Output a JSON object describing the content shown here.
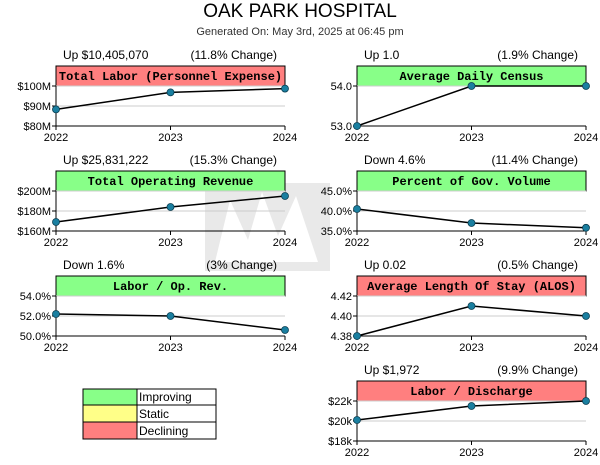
{
  "header": {
    "title": "OAK PARK HOSPITAL",
    "subtitle": "Generated On: May 3rd, 2025 at 06:45 pm"
  },
  "colors": {
    "improving": "#88FF88",
    "static": "#FFFF88",
    "declining": "#FF7F7F",
    "line": "#000000",
    "marker": "#1A7FA0",
    "grid": "#CCCCCC"
  },
  "legend": {
    "items": [
      {
        "label": "Improving",
        "color": "#88FF88"
      },
      {
        "label": "Static",
        "color": "#FFFF88"
      },
      {
        "label": "Declining",
        "color": "#FF7F7F"
      }
    ]
  },
  "chart_data": [
    {
      "type": "line",
      "title": "Total Labor (Personnel Expense)",
      "status": "declining",
      "delta": "Up $10,405,070",
      "change": "(11.8% Change)",
      "categories": [
        "2022",
        "2023",
        "2024"
      ],
      "values": [
        88.3,
        96.8,
        98.7
      ],
      "ylim": [
        80,
        100
      ],
      "yticks": [
        80,
        90,
        100
      ],
      "ytick_labels": [
        "$80M",
        "$90M",
        "$100M"
      ]
    },
    {
      "type": "line",
      "title": "Average Daily Census",
      "status": "improving",
      "delta": "Up 1.0",
      "change": "(1.9% Change)",
      "categories": [
        "2022",
        "2023",
        "2024"
      ],
      "values": [
        53.0,
        54.0,
        54.0
      ],
      "ylim": [
        53,
        54
      ],
      "yticks": [
        53,
        54
      ],
      "ytick_labels": [
        "53.0",
        "54.0"
      ]
    },
    {
      "type": "line",
      "title": "Total Operating Revenue",
      "status": "improving",
      "delta": "Up $25,831,222",
      "change": "(15.3% Change)",
      "categories": [
        "2022",
        "2023",
        "2024"
      ],
      "values": [
        169.0,
        184.0,
        195.0
      ],
      "ylim": [
        160,
        200
      ],
      "yticks": [
        160,
        180,
        200
      ],
      "ytick_labels": [
        "$160M",
        "$180M",
        "$200M"
      ]
    },
    {
      "type": "line",
      "title": "Percent of Gov. Volume",
      "status": "improving",
      "delta": "Down 4.6%",
      "change": "(11.4% Change)",
      "categories": [
        "2022",
        "2023",
        "2024"
      ],
      "values": [
        40.5,
        37.0,
        35.8
      ],
      "ylim": [
        35,
        45
      ],
      "yticks": [
        35,
        40,
        45
      ],
      "ytick_labels": [
        "35.0%",
        "40.0%",
        "45.0%"
      ]
    },
    {
      "type": "line",
      "title": "Labor / Op. Rev.",
      "status": "improving",
      "delta": "Down 1.6%",
      "change": "(3% Change)",
      "categories": [
        "2022",
        "2023",
        "2024"
      ],
      "values": [
        52.2,
        52.0,
        50.6
      ],
      "ylim": [
        50,
        54
      ],
      "yticks": [
        50,
        52,
        54
      ],
      "ytick_labels": [
        "50.0%",
        "52.0%",
        "54.0%"
      ]
    },
    {
      "type": "line",
      "title": "Average Length Of Stay (ALOS)",
      "status": "declining",
      "delta": "Up 0.02",
      "change": "(0.5% Change)",
      "categories": [
        "2022",
        "2023",
        "2024"
      ],
      "values": [
        4.38,
        4.41,
        4.4
      ],
      "ylim": [
        4.38,
        4.42
      ],
      "yticks": [
        4.38,
        4.4,
        4.42
      ],
      "ytick_labels": [
        "4.38",
        "4.40",
        "4.42"
      ]
    },
    {
      "type": "line",
      "title": "Labor / Discharge",
      "status": "declining",
      "delta": "Up $1,972",
      "change": "(9.9% Change)",
      "categories": [
        "2022",
        "2023",
        "2024"
      ],
      "values": [
        20.1,
        21.5,
        22.0
      ],
      "ylim": [
        18,
        22
      ],
      "yticks": [
        18,
        20,
        22
      ],
      "ytick_labels": [
        "$18k",
        "$20k",
        "$22k"
      ]
    }
  ]
}
